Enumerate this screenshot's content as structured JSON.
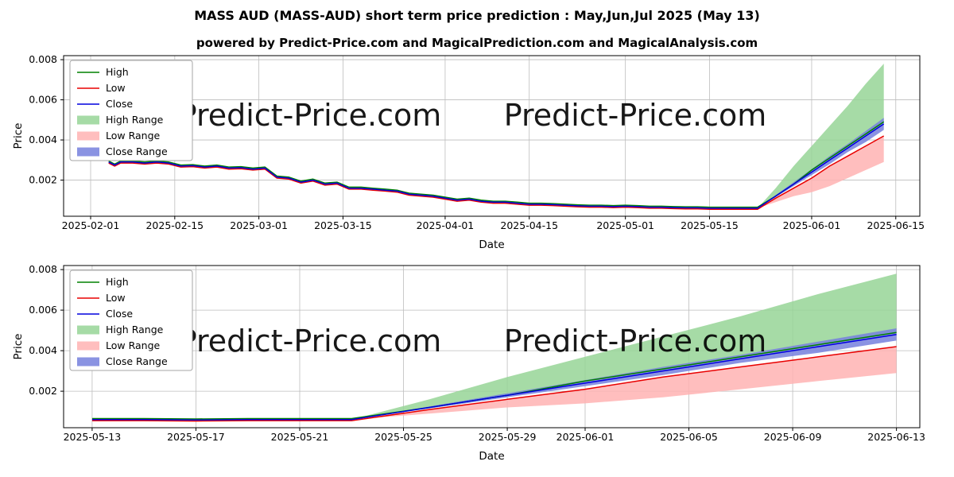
{
  "page": {
    "title": "MASS AUD (MASS-AUD) short term price prediction : May,Jun,Jul 2025 (May 13)",
    "subtitle": "powered by Predict-Price.com and MagicalPrediction.com and MagicalAnalysis.com",
    "watermark": "Predict-Price.com"
  },
  "colors": {
    "high": "#008000",
    "low": "#e80000",
    "close": "#0000dd",
    "high_range": "#97d597",
    "low_range": "#ffb3b3",
    "close_range": "#7680dd",
    "grid": "#bdbdbd",
    "watermark": "#c9c9c9",
    "legend_border": "#a6a6a6"
  },
  "legend": [
    {
      "label": "High",
      "swatch": "line",
      "color_key": "high"
    },
    {
      "label": "Low",
      "swatch": "line",
      "color_key": "low"
    },
    {
      "label": "Close",
      "swatch": "line",
      "color_key": "close"
    },
    {
      "label": "High Range",
      "swatch": "patch",
      "color_key": "high_range"
    },
    {
      "label": "Low Range",
      "swatch": "patch",
      "color_key": "low_range"
    },
    {
      "label": "Close Range",
      "swatch": "patch",
      "color_key": "close_range"
    }
  ],
  "chart_data": [
    {
      "type": "line",
      "xlabel": "Date",
      "ylabel": "Price",
      "xlim": [
        -4.5,
        138
      ],
      "ylim": [
        0.0002,
        0.0082
      ],
      "y_ticks": [
        0.002,
        0.004,
        0.006,
        0.008
      ],
      "y_tick_labels": [
        "0.002",
        "0.004",
        "0.006",
        "0.008"
      ],
      "x_ticks": [
        0,
        14,
        28,
        42,
        59,
        73,
        89,
        103,
        120,
        134
      ],
      "x_tick_labels": [
        "2025-02-01",
        "2025-02-15",
        "2025-03-01",
        "2025-03-15",
        "2025-04-01",
        "2025-04-15",
        "2025-05-01",
        "2025-05-15",
        "2025-06-01",
        "2025-06-15"
      ],
      "x_unit_days_since": "2025-02-01",
      "series": [
        {
          "name": "High",
          "color_key": "high",
          "x": [
            3,
            4,
            5,
            7,
            9,
            11,
            13,
            15,
            17,
            19,
            21,
            23,
            25,
            27,
            29,
            31,
            33,
            35,
            37,
            39,
            41,
            43,
            45,
            47,
            49,
            51,
            53,
            55,
            57,
            59,
            61,
            63,
            65,
            67,
            69,
            71,
            73,
            75,
            77,
            79,
            81,
            83,
            85,
            87,
            89,
            91,
            93,
            95,
            97,
            99,
            101,
            103,
            107,
            111,
            114,
            117,
            120,
            123,
            126,
            129,
            132
          ],
          "y": [
            0.00295,
            0.0028,
            0.00295,
            0.00295,
            0.0029,
            0.00295,
            0.0029,
            0.00275,
            0.00277,
            0.0027,
            0.00275,
            0.00265,
            0.00267,
            0.0026,
            0.00265,
            0.0022,
            0.00215,
            0.00195,
            0.00205,
            0.00185,
            0.0019,
            0.00165,
            0.00165,
            0.0016,
            0.00155,
            0.0015,
            0.00135,
            0.0013,
            0.00125,
            0.00115,
            0.00105,
            0.0011,
            0.001,
            0.00095,
            0.00095,
            0.0009,
            0.00085,
            0.00085,
            0.00083,
            0.0008,
            0.00077,
            0.00075,
            0.00075,
            0.00073,
            0.00075,
            0.00073,
            0.0007,
            0.0007,
            0.00068,
            0.00067,
            0.00067,
            0.00065,
            0.00065,
            0.00065,
            0.0012,
            0.0018,
            0.0025,
            0.0031,
            0.0037,
            0.0043,
            0.0049
          ]
        },
        {
          "name": "Low",
          "color_key": "low",
          "x": [
            3,
            4,
            5,
            7,
            9,
            11,
            13,
            15,
            17,
            19,
            21,
            23,
            25,
            27,
            29,
            31,
            33,
            35,
            37,
            39,
            41,
            43,
            45,
            47,
            49,
            51,
            53,
            55,
            57,
            59,
            61,
            63,
            65,
            67,
            69,
            71,
            73,
            75,
            77,
            79,
            81,
            83,
            85,
            87,
            89,
            91,
            93,
            95,
            97,
            99,
            101,
            103,
            107,
            111,
            114,
            117,
            120,
            123,
            126,
            129,
            132
          ],
          "y": [
            0.00285,
            0.0027,
            0.00285,
            0.00285,
            0.0028,
            0.00285,
            0.0028,
            0.00265,
            0.00267,
            0.0026,
            0.00265,
            0.00255,
            0.00257,
            0.0025,
            0.00255,
            0.0021,
            0.00205,
            0.00185,
            0.00195,
            0.00175,
            0.0018,
            0.00155,
            0.00155,
            0.0015,
            0.00145,
            0.0014,
            0.00125,
            0.0012,
            0.00115,
            0.00105,
            0.00095,
            0.001,
            0.0009,
            0.00085,
            0.00085,
            0.0008,
            0.00075,
            0.00075,
            0.00073,
            0.0007,
            0.00067,
            0.00065,
            0.00065,
            0.00063,
            0.00065,
            0.00063,
            0.0006,
            0.0006,
            0.00058,
            0.00057,
            0.00057,
            0.00055,
            0.00055,
            0.00055,
            0.0011,
            0.0016,
            0.0021,
            0.0027,
            0.0032,
            0.0037,
            0.0042
          ]
        },
        {
          "name": "Close",
          "color_key": "close",
          "x": [
            3,
            4,
            5,
            7,
            9,
            11,
            13,
            15,
            17,
            19,
            21,
            23,
            25,
            27,
            29,
            31,
            33,
            35,
            37,
            39,
            41,
            43,
            45,
            47,
            49,
            51,
            53,
            55,
            57,
            59,
            61,
            63,
            65,
            67,
            69,
            71,
            73,
            75,
            77,
            79,
            81,
            83,
            85,
            87,
            89,
            91,
            93,
            95,
            97,
            99,
            101,
            103,
            107,
            111,
            114,
            117,
            120,
            123,
            126,
            129,
            132
          ],
          "y": [
            0.0029,
            0.00275,
            0.0029,
            0.0029,
            0.00285,
            0.0029,
            0.00285,
            0.0027,
            0.00272,
            0.00265,
            0.0027,
            0.0026,
            0.00262,
            0.00255,
            0.0026,
            0.00215,
            0.0021,
            0.0019,
            0.002,
            0.0018,
            0.00185,
            0.0016,
            0.0016,
            0.00155,
            0.0015,
            0.00145,
            0.0013,
            0.00125,
            0.0012,
            0.0011,
            0.001,
            0.00105,
            0.00095,
            0.0009,
            0.0009,
            0.00085,
            0.0008,
            0.0008,
            0.00078,
            0.00075,
            0.00072,
            0.0007,
            0.0007,
            0.00068,
            0.0007,
            0.00068,
            0.00065,
            0.00065,
            0.00063,
            0.00062,
            0.00062,
            0.0006,
            0.0006,
            0.0006,
            0.0012,
            0.0018,
            0.0024,
            0.003,
            0.0036,
            0.0042,
            0.0048
          ]
        }
      ],
      "bands": [
        {
          "name": "High Range",
          "color_key": "high_range",
          "x": [
            111,
            114,
            117,
            120,
            123,
            126,
            129,
            132
          ],
          "top": [
            0.0006,
            0.0016,
            0.0027,
            0.0037,
            0.0047,
            0.0057,
            0.0068,
            0.0078
          ],
          "bottom": [
            0.00065,
            0.0012,
            0.0018,
            0.0025,
            0.0031,
            0.0037,
            0.0043,
            0.0049
          ]
        },
        {
          "name": "Low Range",
          "color_key": "low_range",
          "x": [
            111,
            114,
            117,
            120,
            123,
            126,
            129,
            132
          ],
          "top": [
            0.00055,
            0.0011,
            0.0016,
            0.0021,
            0.0027,
            0.0032,
            0.0037,
            0.0042
          ],
          "bottom": [
            0.0006,
            0.0009,
            0.0012,
            0.0014,
            0.0017,
            0.0021,
            0.0025,
            0.0029
          ]
        },
        {
          "name": "Close Range",
          "color_key": "close_range",
          "x": [
            111,
            114,
            117,
            120,
            123,
            126,
            129,
            132
          ],
          "top": [
            0.0006,
            0.00125,
            0.0019,
            0.00255,
            0.0032,
            0.0038,
            0.00445,
            0.0051
          ],
          "bottom": [
            0.0006,
            0.00115,
            0.0017,
            0.00225,
            0.0028,
            0.0034,
            0.0039,
            0.0045
          ]
        }
      ]
    },
    {
      "type": "line",
      "xlabel": "Date",
      "ylabel": "Price",
      "xlim": [
        -1.1,
        31.9
      ],
      "ylim": [
        0.0002,
        0.0082
      ],
      "y_ticks": [
        0.002,
        0.004,
        0.006,
        0.008
      ],
      "y_tick_labels": [
        "0.002",
        "0.004",
        "0.006",
        "0.008"
      ],
      "x_ticks": [
        0,
        4,
        8,
        12,
        16,
        19,
        23,
        27,
        31
      ],
      "x_tick_labels": [
        "2025-05-13",
        "2025-05-17",
        "2025-05-21",
        "2025-05-25",
        "2025-05-29",
        "2025-06-01",
        "2025-06-05",
        "2025-06-09",
        "2025-06-13"
      ],
      "x_unit_days_since": "2025-05-13",
      "series": [
        {
          "name": "High",
          "color_key": "high",
          "x": [
            0,
            2,
            4,
            6,
            8,
            10,
            13,
            16,
            19,
            22,
            25,
            28,
            31
          ],
          "y": [
            0.00065,
            0.00065,
            0.00063,
            0.00065,
            0.00065,
            0.00065,
            0.0012,
            0.0018,
            0.0025,
            0.0031,
            0.0037,
            0.0043,
            0.0049
          ]
        },
        {
          "name": "Low",
          "color_key": "low",
          "x": [
            0,
            2,
            4,
            6,
            8,
            10,
            13,
            16,
            19,
            22,
            25,
            28,
            31
          ],
          "y": [
            0.00055,
            0.00055,
            0.00053,
            0.00055,
            0.00055,
            0.00055,
            0.0011,
            0.0016,
            0.0021,
            0.0027,
            0.0032,
            0.0037,
            0.0042
          ]
        },
        {
          "name": "Close",
          "color_key": "close",
          "x": [
            0,
            2,
            4,
            6,
            8,
            10,
            13,
            16,
            19,
            22,
            25,
            28,
            31
          ],
          "y": [
            0.0006,
            0.0006,
            0.00058,
            0.0006,
            0.0006,
            0.0006,
            0.0012,
            0.0018,
            0.0024,
            0.003,
            0.0036,
            0.0042,
            0.0048
          ]
        }
      ],
      "bands": [
        {
          "name": "High Range",
          "color_key": "high_range",
          "x": [
            10,
            13,
            16,
            19,
            22,
            25,
            28,
            31
          ],
          "top": [
            0.0006,
            0.0016,
            0.0027,
            0.0037,
            0.0047,
            0.0057,
            0.0068,
            0.0078
          ],
          "bottom": [
            0.00065,
            0.0012,
            0.0018,
            0.0025,
            0.0031,
            0.0037,
            0.0043,
            0.0049
          ]
        },
        {
          "name": "Low Range",
          "color_key": "low_range",
          "x": [
            10,
            13,
            16,
            19,
            22,
            25,
            28,
            31
          ],
          "top": [
            0.00055,
            0.0011,
            0.0016,
            0.0021,
            0.0027,
            0.0032,
            0.0037,
            0.0042
          ],
          "bottom": [
            0.0006,
            0.0009,
            0.0012,
            0.0014,
            0.0017,
            0.0021,
            0.0025,
            0.0029
          ]
        },
        {
          "name": "Close Range",
          "color_key": "close_range",
          "x": [
            10,
            13,
            16,
            19,
            22,
            25,
            28,
            31
          ],
          "top": [
            0.0006,
            0.00125,
            0.0019,
            0.00255,
            0.0032,
            0.0038,
            0.00445,
            0.0051
          ],
          "bottom": [
            0.0006,
            0.00115,
            0.0017,
            0.00225,
            0.0028,
            0.0034,
            0.0039,
            0.0045
          ]
        }
      ]
    }
  ]
}
